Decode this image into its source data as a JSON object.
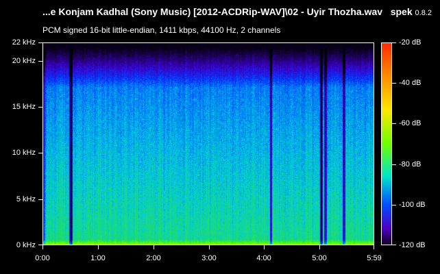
{
  "window": {
    "file_title": "...e Konjam Kadhal (Sony Music) [2012-ACDRip-WAV]\\02 - Uyir Thozha.wav",
    "app_name": "spek",
    "app_version": "0.8.2"
  },
  "info": "PCM signed 16-bit little-endian, 1411 kbps, 44100 Hz, 2 channels",
  "frequency_axis": {
    "labels": [
      "22 kHz",
      "20 kHz",
      "15 kHz",
      "10 kHz",
      "5 kHz",
      "0 kHz"
    ],
    "values_khz": [
      22,
      20,
      15,
      10,
      5,
      0
    ]
  },
  "time_axis": {
    "labels": [
      "0:00",
      "1:00",
      "2:00",
      "3:00",
      "4:00",
      "5:00",
      "5:59"
    ],
    "values_sec": [
      0,
      60,
      120,
      180,
      240,
      300,
      359
    ]
  },
  "db_scale": {
    "labels": [
      "-20 dB",
      "-40 dB",
      "-60 dB",
      "-80 dB",
      "-100 dB",
      "-120 dB"
    ],
    "values_db": [
      -20,
      -40,
      -60,
      -80,
      -100,
      -120
    ]
  },
  "colors": {
    "background": "#000000",
    "low": "#100020",
    "mid": "#6dff00",
    "high": "#ff2a00"
  },
  "spectrogram": {
    "duration_sec": 359,
    "max_khz": 22,
    "dark_columns_sec": [
      30,
      31,
      247,
      301,
      302,
      306,
      326
    ],
    "cutoff_khz": 21.3
  }
}
